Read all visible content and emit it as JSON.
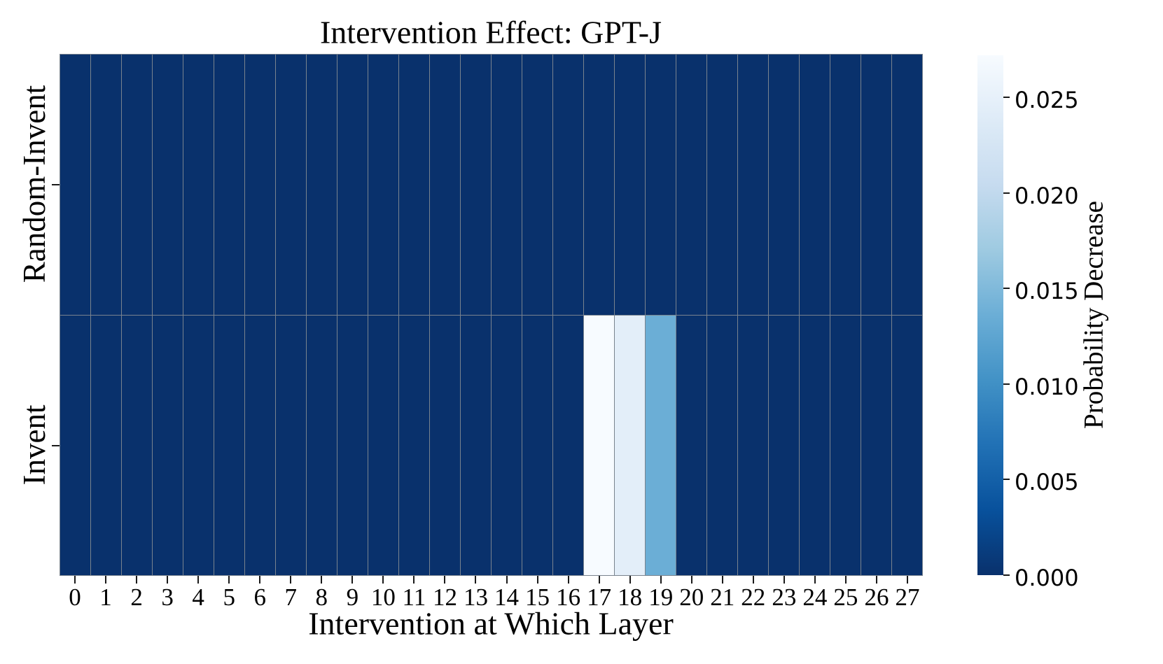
{
  "chart_data": {
    "type": "heatmap",
    "title": "Intervention Effect: GPT-J",
    "xlabel": "Intervention at Which Layer",
    "x_categories": [
      "0",
      "1",
      "2",
      "3",
      "4",
      "5",
      "6",
      "7",
      "8",
      "9",
      "10",
      "11",
      "12",
      "13",
      "14",
      "15",
      "16",
      "17",
      "18",
      "19",
      "20",
      "21",
      "22",
      "23",
      "24",
      "25",
      "26",
      "27"
    ],
    "y_categories": [
      "Random-Invent",
      "Invent"
    ],
    "values": [
      [
        0,
        0,
        0,
        0,
        0,
        0,
        0,
        0,
        0,
        0,
        0,
        0,
        0,
        0,
        0,
        0,
        0,
        0,
        0,
        0,
        0,
        0,
        0,
        0,
        0,
        0,
        0,
        0
      ],
      [
        0,
        0,
        0,
        0,
        0,
        0,
        0,
        0,
        0,
        0,
        0,
        0,
        0,
        0,
        0,
        0,
        0,
        0.0272,
        0.0245,
        0.0136,
        0,
        0,
        0,
        0,
        0,
        0,
        0,
        0
      ]
    ],
    "vmin": 0.0,
    "vmax": 0.0272,
    "colormap": "Blues (dark = low, light = high)",
    "colormap_stops": [
      "#f7fbff",
      "#deebf7",
      "#c6dbef",
      "#9ecae1",
      "#6baed6",
      "#4292c6",
      "#2171b5",
      "#08519c",
      "#09316c"
    ],
    "grid_line_color": "#79838e",
    "legend_position": "right",
    "colorbar": {
      "label": "Probability Decrease",
      "tick_values": [
        0.0,
        0.005,
        0.01,
        0.015,
        0.02,
        0.025
      ],
      "tick_labels": [
        "0.000",
        "0.005",
        "0.010",
        "0.015",
        "0.020",
        "0.025"
      ]
    }
  }
}
